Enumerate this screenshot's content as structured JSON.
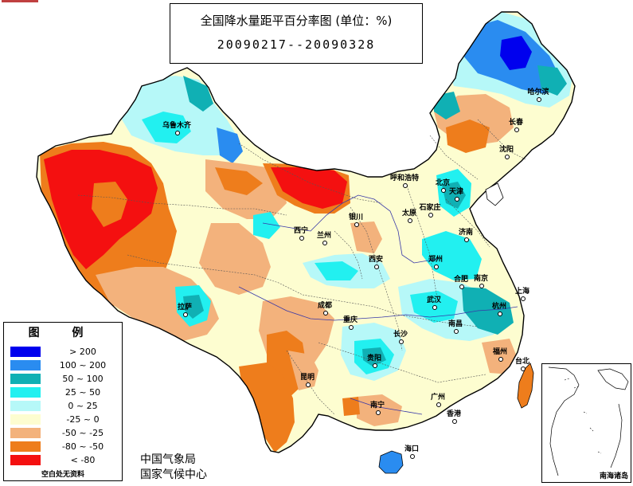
{
  "title": "全国降水量距平百分率图 (单位：%)",
  "date_range": "20090217--20090328",
  "legend": {
    "title": "图 例",
    "items": [
      {
        "label": "> 200",
        "color": "#0000ee"
      },
      {
        "label": "100 ~ 200",
        "color": "#2a8cf0"
      },
      {
        "label": "50 ~ 100",
        "color": "#10b0b4"
      },
      {
        "label": "25 ~ 50",
        "color": "#22f0f0"
      },
      {
        "label": "0 ~ 25",
        "color": "#b6f8f8"
      },
      {
        "label": "-25 ~ 0",
        "color": "#fdfdd0"
      },
      {
        "label": "-50 ~ -25",
        "color": "#f3b27c"
      },
      {
        "label": "-80 ~ -50",
        "color": "#ee7d1c"
      },
      {
        "label": "< -80",
        "color": "#f41010"
      }
    ],
    "note": "空白处无资料"
  },
  "org_lines": [
    "中国气象局",
    "国家气候中心"
  ],
  "inset_label": "南海诸岛",
  "cities": [
    "乌鲁木齐",
    "哈尔滨",
    "长春",
    "沈阳",
    "呼和浩特",
    "北京",
    "天津",
    "石家庄",
    "太原",
    "济南",
    "银川",
    "西宁",
    "兰州",
    "西安",
    "郑州",
    "拉萨",
    "成都",
    "重庆",
    "武汉",
    "合肥",
    "南京",
    "上海",
    "杭州",
    "长沙",
    "南昌",
    "贵阳",
    "昆明",
    "福州",
    "台北",
    "南宁",
    "广州",
    "香港",
    "海口"
  ]
}
